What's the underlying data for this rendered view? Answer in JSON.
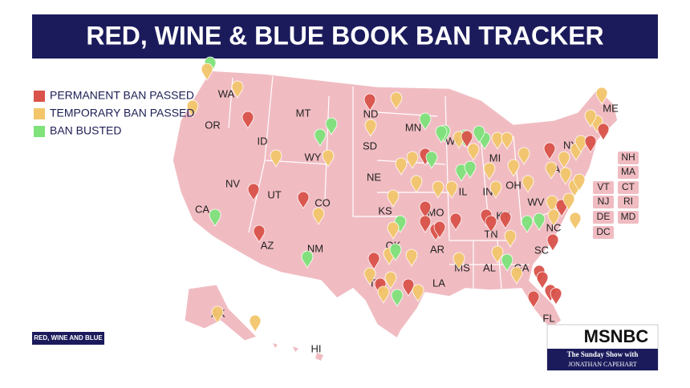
{
  "title": "RED, WINE & BLUE BOOK BAN TRACKER",
  "legend": [
    {
      "label": "PERMANENT BAN PASSED",
      "color": "#d9534a"
    },
    {
      "label": "TEMPORARY BAN PASSED",
      "color": "#f3c66c"
    },
    {
      "label": "BAN BUSTED",
      "color": "#7fe27b"
    }
  ],
  "map": {
    "state_labels": [
      "WA",
      "OR",
      "CA",
      "ID",
      "NV",
      "MT",
      "WY",
      "UT",
      "AZ",
      "CO",
      "NM",
      "ND",
      "SD",
      "NE",
      "KS",
      "OK",
      "TX",
      "MN",
      "MO",
      "AR",
      "LA",
      "WI",
      "IL",
      "MI",
      "IN",
      "OH",
      "KY",
      "TN",
      "MS",
      "AL",
      "GA",
      "FL",
      "SC",
      "NC",
      "WV",
      "PA",
      "NY",
      "ME",
      "AK",
      "HI"
    ],
    "callout_labels": [
      "NH",
      "MA",
      "VT",
      "CT",
      "NJ",
      "RI",
      "DE",
      "MD",
      "DC"
    ]
  },
  "source": "RED, WINE AND BLUE",
  "network": {
    "logo": "MSNBC",
    "show": "The Sunday Show with",
    "host": "JONATHAN CAPEHART"
  }
}
